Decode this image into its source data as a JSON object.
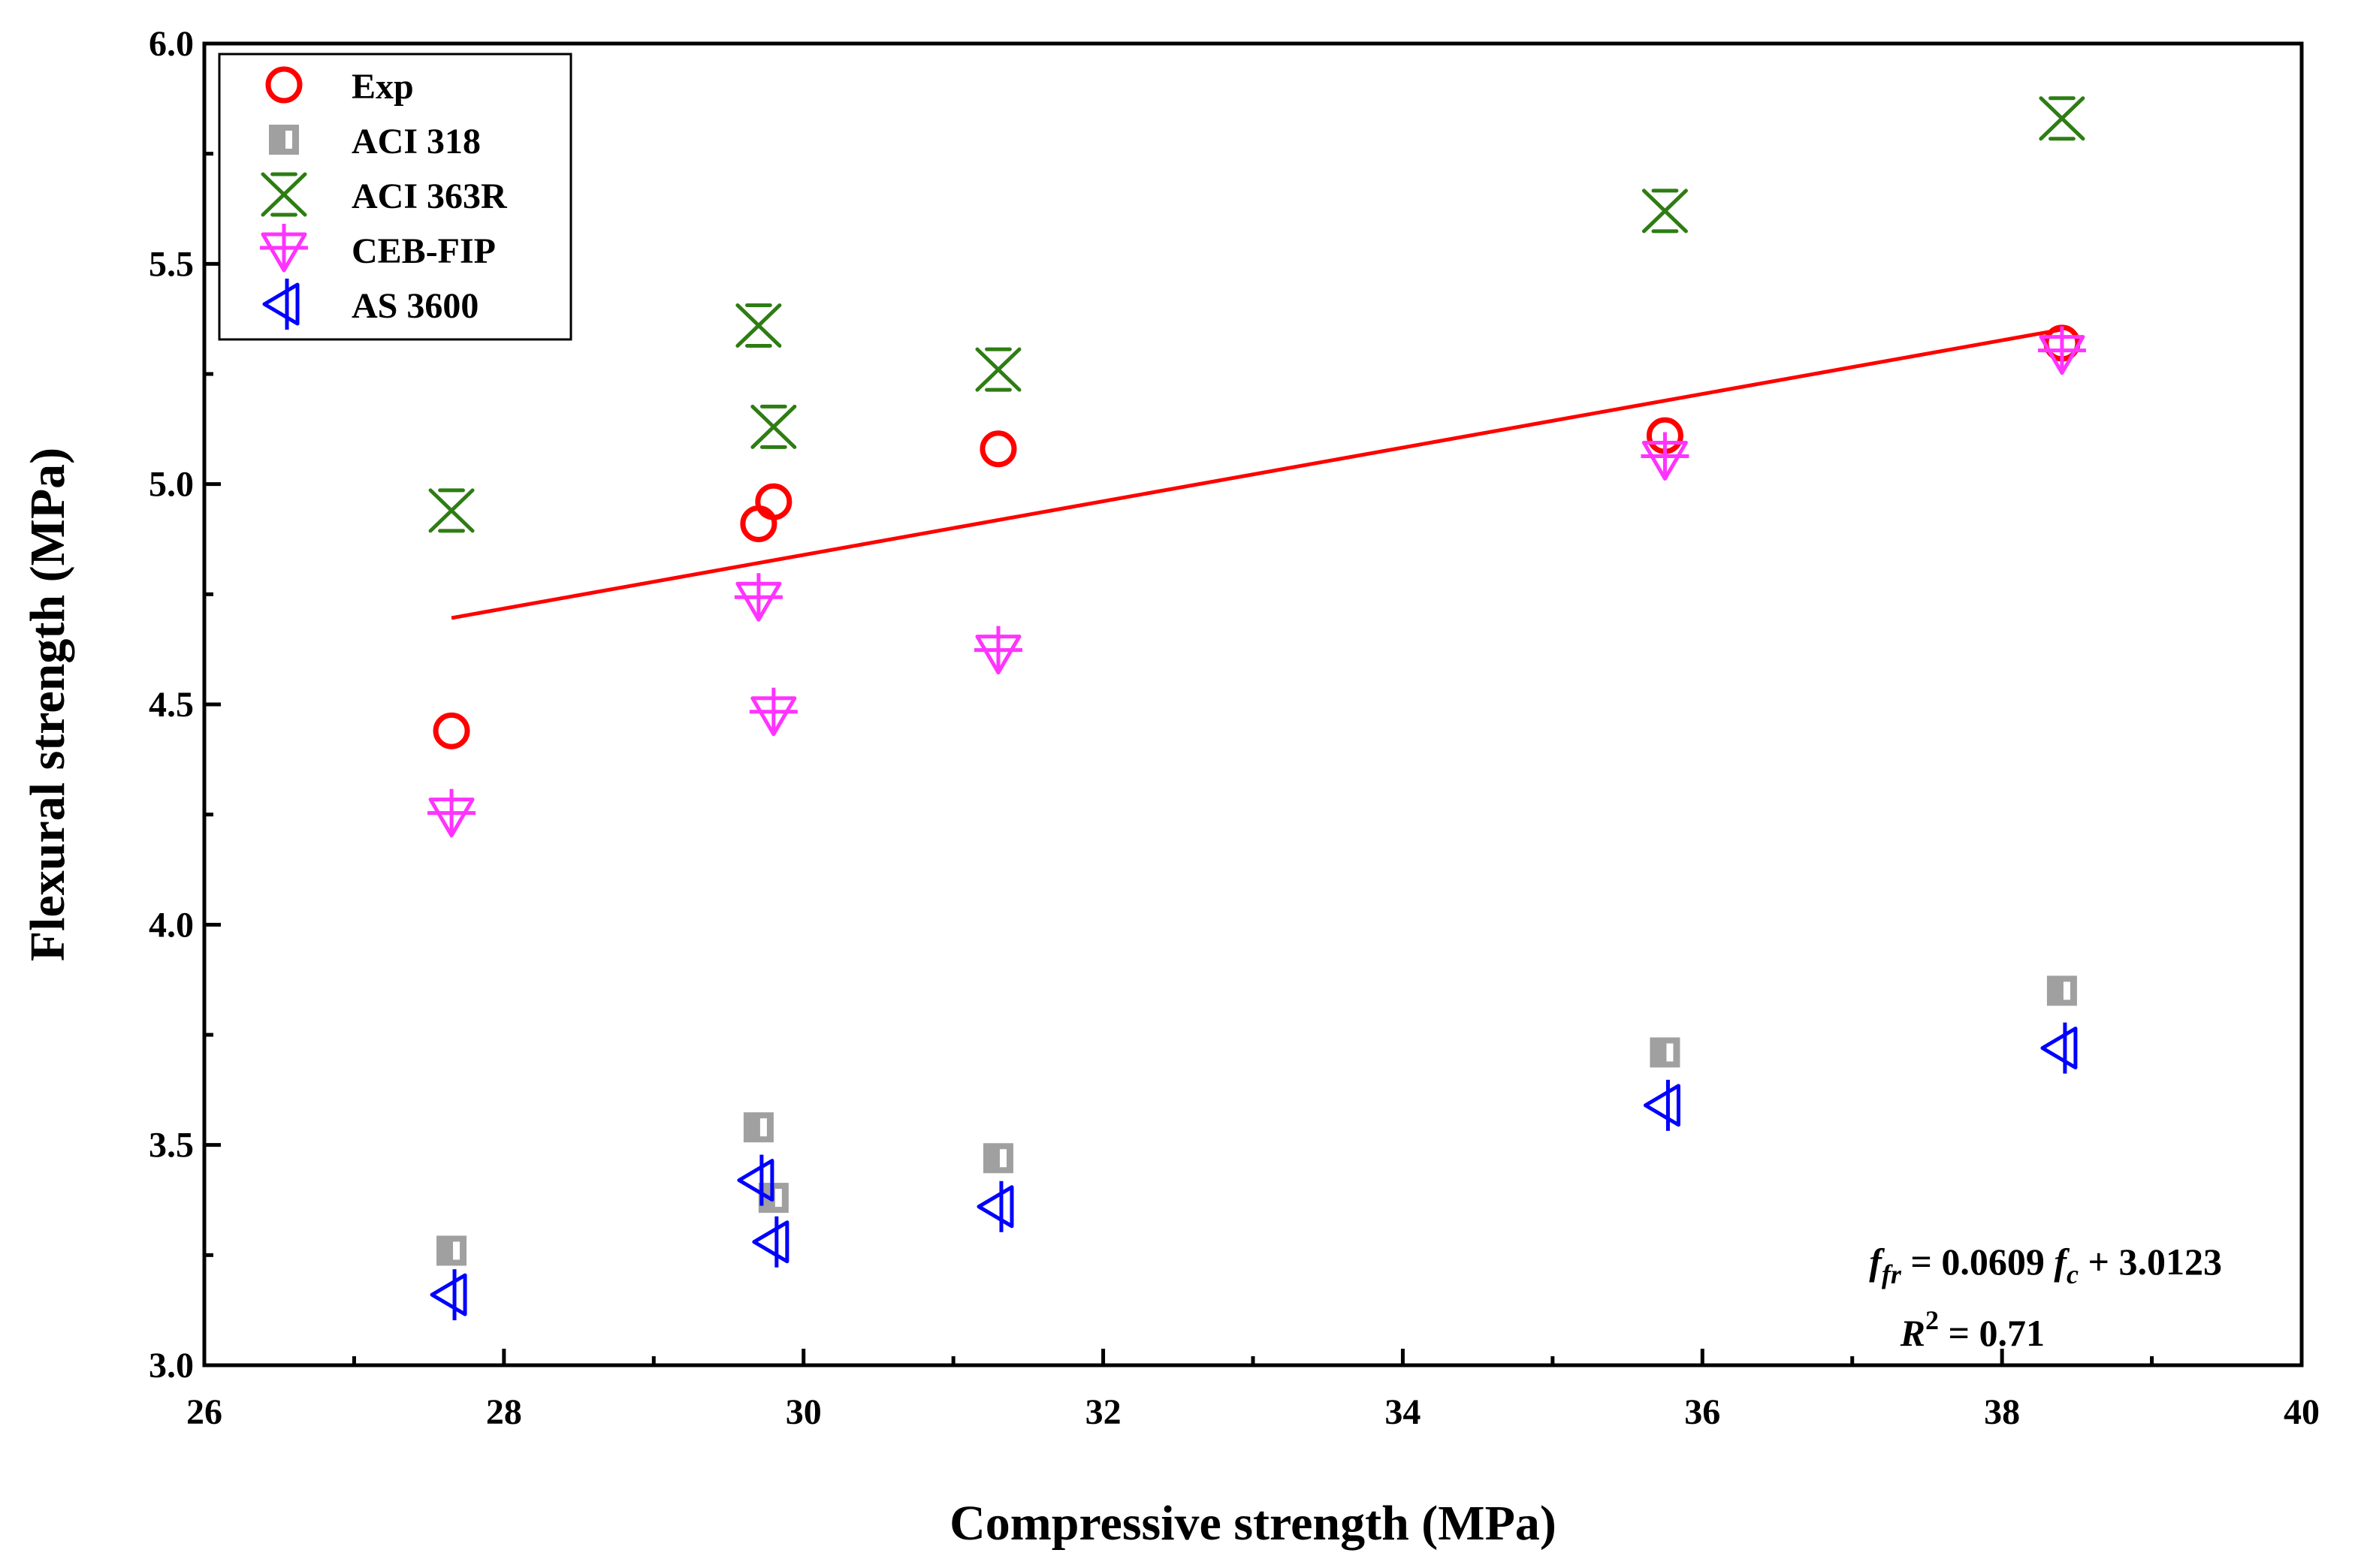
{
  "chart_data": {
    "type": "scatter",
    "title": "",
    "xlabel": "Compressive strength (MPa)",
    "ylabel": "Flexural strength (MPa)",
    "xlim": [
      26,
      40
    ],
    "ylim": [
      3.0,
      6.0
    ],
    "xticks": [
      "26",
      "28",
      "30",
      "32",
      "34",
      "36",
      "38",
      "40"
    ],
    "yticks": [
      "3.0",
      "3.5",
      "4.0",
      "4.5",
      "5.0",
      "5.5",
      "6.0"
    ],
    "grid": false,
    "legend_position": "top-left",
    "series": [
      {
        "name": "Exp",
        "marker": "circle",
        "color": "#ff0000",
        "x": [
          27.65,
          29.7,
          29.8,
          31.3,
          35.75,
          38.4
        ],
        "y": [
          4.44,
          4.91,
          4.96,
          5.08,
          5.11,
          5.32
        ]
      },
      {
        "name": "ACI 318",
        "marker": "half-square",
        "color": "#a0a0a0",
        "x": [
          27.65,
          29.7,
          29.8,
          31.3,
          35.75,
          38.4
        ],
        "y": [
          3.26,
          3.54,
          3.38,
          3.47,
          3.71,
          3.85
        ]
      },
      {
        "name": "ACI 363R",
        "marker": "hourglass-x",
        "color": "#2e7d13",
        "x": [
          27.65,
          29.7,
          29.8,
          31.3,
          35.75,
          38.4
        ],
        "y": [
          4.94,
          5.36,
          5.13,
          5.26,
          5.62,
          5.83
        ]
      },
      {
        "name": "CEB-FIP",
        "marker": "triangle-down-cross",
        "color": "#ff33ff",
        "x": [
          27.65,
          29.7,
          29.8,
          31.3,
          35.75,
          38.4
        ],
        "y": [
          4.25,
          4.74,
          4.48,
          4.62,
          5.06,
          5.3
        ]
      },
      {
        "name": "AS 3600",
        "marker": "triangle-left-bar",
        "color": "#0000ff",
        "x": [
          27.65,
          29.7,
          29.8,
          31.3,
          35.75,
          38.4
        ],
        "y": [
          3.16,
          3.42,
          3.28,
          3.36,
          3.59,
          3.72
        ]
      }
    ],
    "fit_line": {
      "color": "#ff0000",
      "x": [
        27.65,
        38.4
      ],
      "slope": 0.0609,
      "intercept": 3.0123
    },
    "annotation": {
      "eq_f": "f",
      "eq_fr_sub": "fr",
      "eq_mid": " = 0.0609 ",
      "eq_c_sub": "c",
      "eq_end": " + 3.0123",
      "r2_r": "R",
      "r2_sup": "2",
      "r2_end": " = 0.71"
    }
  }
}
